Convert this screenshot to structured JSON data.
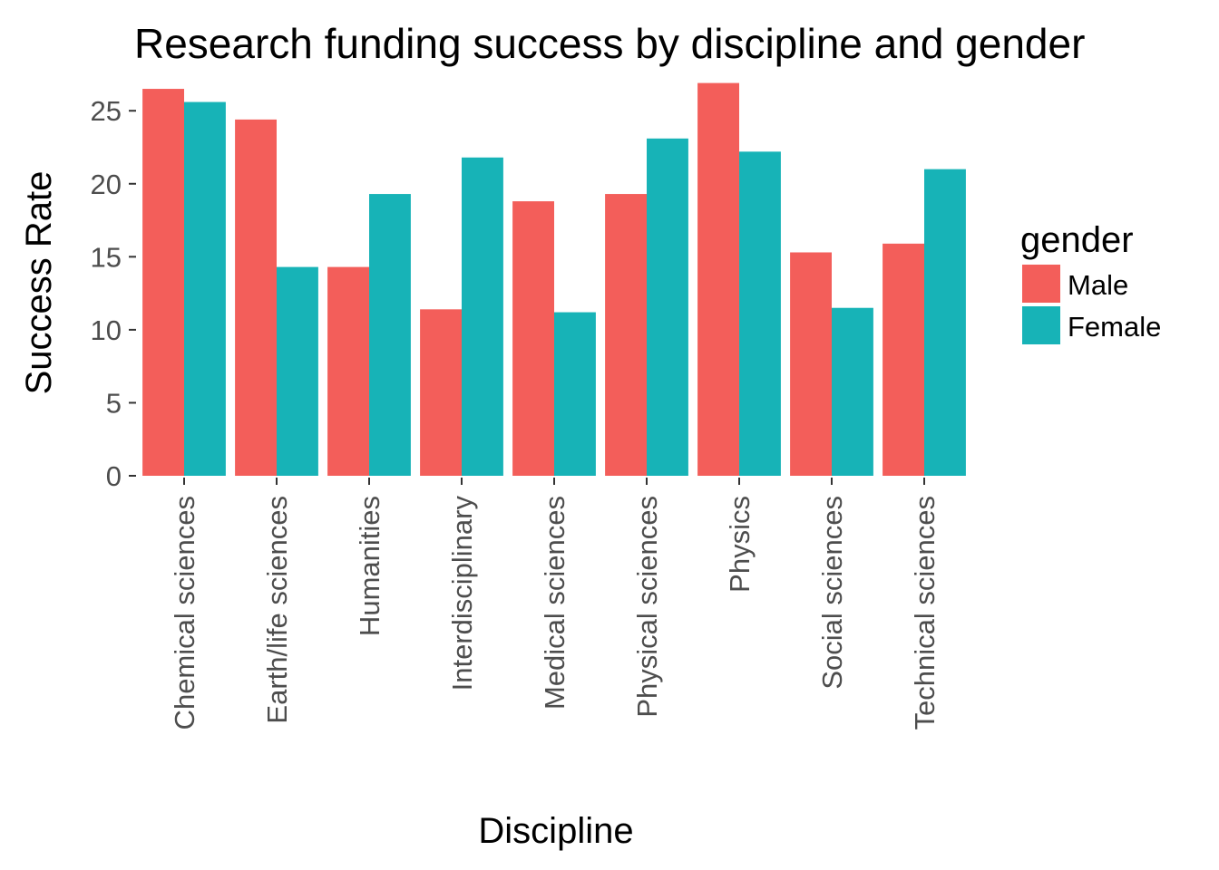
{
  "chart_data": {
    "type": "bar",
    "title": "Research funding success by discipline and gender",
    "xlabel": "Discipline",
    "ylabel": "Success Rate",
    "categories": [
      "Chemical sciences",
      "Earth/life sciences",
      "Humanities",
      "Interdisciplinary",
      "Medical sciences",
      "Physical sciences",
      "Physics",
      "Social sciences",
      "Technical sciences"
    ],
    "series": [
      {
        "name": "Male",
        "color": "#F35E5A",
        "values": [
          26.5,
          24.4,
          14.3,
          11.4,
          18.8,
          19.3,
          26.9,
          15.3,
          15.9
        ]
      },
      {
        "name": "Female",
        "color": "#17B3B7",
        "values": [
          25.6,
          14.3,
          19.3,
          21.8,
          11.2,
          23.1,
          22.2,
          11.5,
          21.0
        ]
      }
    ],
    "ylim": [
      0,
      27
    ],
    "yticks": [
      0,
      5,
      10,
      15,
      20,
      25
    ],
    "legend": {
      "title": "gender",
      "position": "right"
    },
    "grid": false
  }
}
